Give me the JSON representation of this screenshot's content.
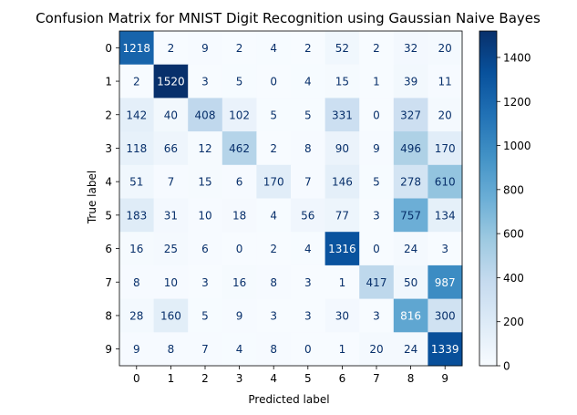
{
  "chart_data": {
    "type": "heatmap",
    "title": "Confusion Matrix for MNIST Digit Recognition using Gaussian Naive Bayes",
    "xlabel": "Predicted label",
    "ylabel": "True label",
    "x_categories": [
      "0",
      "1",
      "2",
      "3",
      "4",
      "5",
      "6",
      "7",
      "8",
      "9"
    ],
    "y_categories": [
      "0",
      "1",
      "2",
      "3",
      "4",
      "5",
      "6",
      "7",
      "8",
      "9"
    ],
    "matrix": [
      [
        1218,
        2,
        9,
        2,
        4,
        2,
        52,
        2,
        32,
        20
      ],
      [
        2,
        1520,
        3,
        5,
        0,
        4,
        15,
        1,
        39,
        11
      ],
      [
        142,
        40,
        408,
        102,
        5,
        5,
        331,
        0,
        327,
        20
      ],
      [
        118,
        66,
        12,
        462,
        2,
        8,
        90,
        9,
        496,
        170
      ],
      [
        51,
        7,
        15,
        6,
        170,
        7,
        146,
        5,
        278,
        610
      ],
      [
        183,
        31,
        10,
        18,
        4,
        56,
        77,
        3,
        757,
        134
      ],
      [
        16,
        25,
        6,
        0,
        2,
        4,
        1316,
        0,
        24,
        3
      ],
      [
        8,
        10,
        3,
        16,
        8,
        3,
        1,
        417,
        50,
        987
      ],
      [
        28,
        160,
        5,
        9,
        3,
        3,
        30,
        3,
        816,
        300
      ],
      [
        9,
        8,
        7,
        4,
        8,
        0,
        1,
        20,
        24,
        1339
      ]
    ],
    "colormap": "Blues",
    "vmin": 0,
    "vmax": 1520,
    "colorbar_ticks": [
      0,
      200,
      400,
      600,
      800,
      1000,
      1200,
      1400
    ],
    "grid": false
  }
}
